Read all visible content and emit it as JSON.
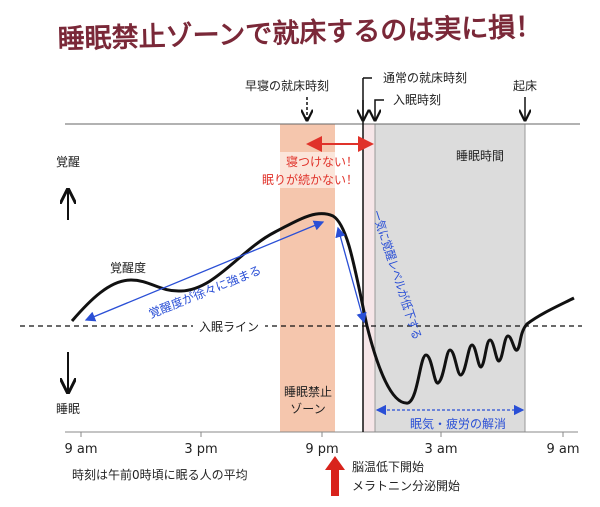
{
  "title": "睡眠禁止ゾーンで就床するのは実に損！",
  "colors": {
    "title": "#7a2838",
    "zone": "#f5c6ad",
    "sleep_area": "#dcdcdc",
    "blue": "#2a4fd6",
    "red": "#e0322a"
  },
  "top_labels": {
    "early_bedtime": "早寝の就床時刻",
    "normal_bedtime": "通常の就床時刻",
    "sleep_onset": "入眠時刻",
    "wake": "起床"
  },
  "y_axis": {
    "awake": "覚醒",
    "sleep": "睡眠"
  },
  "sleep_time": "睡眠時間",
  "warning": {
    "line1": "寝つけない！",
    "line2": "眠りが続かない！"
  },
  "curve_label": "覚醒度",
  "rise_label": "覚醒度が徐々に強まる",
  "drop_label": "一気に覚醒レベルが低下する",
  "sleep_line": "入眠ライン",
  "zone_label": {
    "line1": "睡眠禁止",
    "line2": "ゾーン"
  },
  "recovery_label": "眠気・疲労の解消",
  "x_ticks": [
    "9 am",
    "3 pm",
    "9 pm",
    "3 am",
    "9 am"
  ],
  "footnote": "時刻は午前0時頃に眠る人の平均",
  "event": {
    "line1": "脳温低下開始",
    "line2": "メラトニン分泌開始"
  }
}
